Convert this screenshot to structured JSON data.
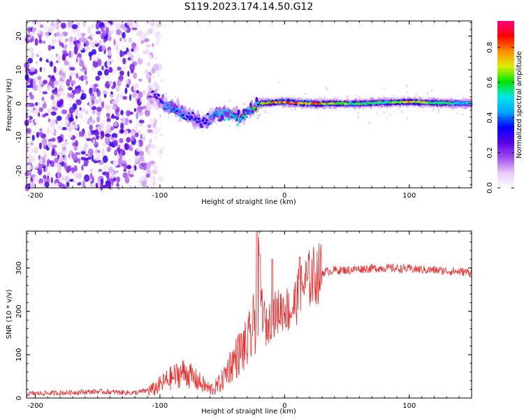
{
  "figure": {
    "title": "S119.2023.174.14.50.G12"
  },
  "chart_data": [
    {
      "type": "heatmap",
      "title": "",
      "xlabel": "Height of straight line (km)",
      "ylabel": "Frequency (Hz)",
      "xlim": [
        -207,
        150
      ],
      "ylim": [
        -25,
        24.5
      ],
      "x_ticks": [
        -200,
        -100,
        0,
        100
      ],
      "y_ticks": [
        -20,
        -10,
        0,
        10,
        20
      ],
      "colorbar": {
        "label": "Normalized spectral amplitude",
        "range": [
          0,
          0.95
        ],
        "ticks": [
          0.0,
          0.2,
          0.4,
          0.6,
          0.8
        ],
        "colors": [
          "#ffffff",
          "#e6c8f5",
          "#a04cf0",
          "#5a00e6",
          "#0000ff",
          "#00a8ff",
          "#00e6e6",
          "#00e600",
          "#dcf000",
          "#ff8c00",
          "#ff0000",
          "#ff0080"
        ]
      },
      "ridge": {
        "x": [
          -105,
          -95,
          -85,
          -75,
          -65,
          -55,
          -45,
          -35,
          -28,
          -20,
          -10,
          0,
          10,
          20,
          40,
          60,
          80,
          100,
          120,
          150
        ],
        "freq": [
          2.5,
          -1,
          -2,
          -4,
          -6,
          -3,
          -3,
          -4,
          -2,
          0,
          0.3,
          0.5,
          0.2,
          0,
          0,
          0,
          0.3,
          0.5,
          0.2,
          0
        ],
        "amplitude": [
          0.25,
          0.45,
          0.45,
          0.35,
          0.35,
          0.45,
          0.55,
          0.6,
          0.55,
          0.65,
          0.8,
          0.9,
          0.9,
          0.85,
          0.7,
          0.6,
          0.6,
          0.75,
          0.6,
          0.5
        ]
      }
    },
    {
      "type": "line",
      "title": "",
      "xlabel": "Height of straight line (km)",
      "ylabel": "SNR (10 * v/v)",
      "xlim": [
        -207,
        150
      ],
      "ylim": [
        0,
        385
      ],
      "x_ticks": [
        -200,
        -100,
        0,
        100
      ],
      "y_ticks": [
        0,
        100,
        200,
        300
      ],
      "color": "#ee2a2a",
      "series": [
        {
          "x": [
            -207,
            -180,
            -150,
            -120,
            -105,
            -95,
            -85,
            -80,
            -75,
            -70,
            -65,
            -60,
            -55,
            -50,
            -45,
            -40,
            -35,
            -30,
            -25,
            -22,
            -20,
            -18,
            -15,
            -10,
            -5,
            0,
            5,
            10,
            15,
            20,
            25,
            30,
            40,
            50,
            60,
            80,
            100,
            120,
            150
          ],
          "y": [
            10,
            12,
            15,
            12,
            20,
            40,
            55,
            60,
            50,
            40,
            30,
            20,
            25,
            40,
            70,
            90,
            110,
            120,
            160,
            230,
            270,
            210,
            160,
            190,
            200,
            210,
            200,
            230,
            260,
            275,
            285,
            290,
            295,
            295,
            298,
            300,
            298,
            295,
            290
          ]
        }
      ],
      "peaks": [
        {
          "x": -22,
          "y": 385
        },
        {
          "x": -20,
          "y": 330
        },
        {
          "x": -10,
          "y": 320
        },
        {
          "x": 12,
          "y": 325
        }
      ]
    }
  ]
}
